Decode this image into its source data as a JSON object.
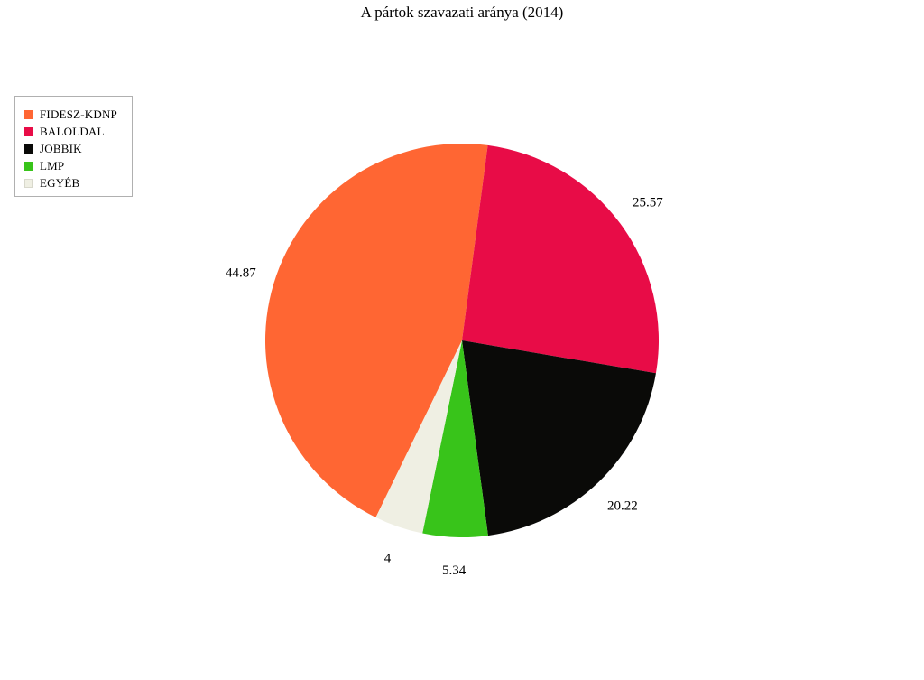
{
  "chart_data": {
    "type": "pie",
    "title": "A pártok szavazati aránya (2014)",
    "categories": [
      "FIDESZ-KDNP",
      "BALOLDAL",
      "JOBBIK",
      "LMP",
      "EGYÉB"
    ],
    "values": [
      44.87,
      25.57,
      20.22,
      5.34,
      4
    ],
    "value_labels": [
      "44.87",
      "25.57",
      "20.22",
      "5.34",
      "4"
    ],
    "colors": [
      "#ff6633",
      "#e80c47",
      "#0a0a08",
      "#38c41a",
      "#efefe3"
    ],
    "legend_position": "top-left",
    "start_angle_deg": 206,
    "direction": "clockwise"
  }
}
